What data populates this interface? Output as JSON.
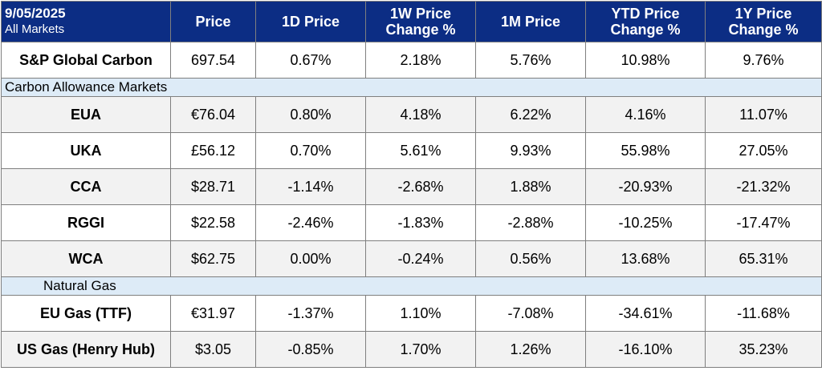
{
  "header": {
    "date": "9/05/2025",
    "subtitle": "All Markets",
    "columns": [
      "Price",
      "1D Price",
      "1W Price\nChange %",
      "1M Price",
      "YTD Price\nChange %",
      "1Y Price\nChange %"
    ]
  },
  "rows": [
    {
      "type": "data",
      "name": "S&P Global Carbon",
      "shade": false,
      "values": [
        "697.54",
        "0.67%",
        "2.18%",
        "5.76%",
        "10.98%",
        "9.76%"
      ]
    },
    {
      "type": "section",
      "label": "Carbon Allowance Markets"
    },
    {
      "type": "data",
      "name": "EUA",
      "shade": true,
      "values": [
        "€76.04",
        "0.80%",
        "4.18%",
        "6.22%",
        "4.16%",
        "11.07%"
      ]
    },
    {
      "type": "data",
      "name": "UKA",
      "shade": false,
      "values": [
        "£56.12",
        "0.70%",
        "5.61%",
        "9.93%",
        "55.98%",
        "27.05%"
      ]
    },
    {
      "type": "data",
      "name": "CCA",
      "shade": true,
      "values": [
        "$28.71",
        "-1.14%",
        "-2.68%",
        "1.88%",
        "-20.93%",
        "-21.32%"
      ]
    },
    {
      "type": "data",
      "name": "RGGI",
      "shade": false,
      "values": [
        "$22.58",
        "-2.46%",
        "-1.83%",
        "-2.88%",
        "-10.25%",
        "-17.47%"
      ]
    },
    {
      "type": "data",
      "name": "WCA",
      "shade": true,
      "values": [
        "$62.75",
        "0.00%",
        "-0.24%",
        "0.56%",
        "13.68%",
        "65.31%"
      ]
    },
    {
      "type": "section",
      "label": "Natural Gas"
    },
    {
      "type": "data",
      "name": "EU Gas (TTF)",
      "shade": false,
      "values": [
        "€31.97",
        "-1.37%",
        "1.10%",
        "-7.08%",
        "-34.61%",
        "-11.68%"
      ]
    },
    {
      "type": "data",
      "name": "US Gas (Henry Hub)",
      "shade": true,
      "values": [
        "$3.05",
        "-0.85%",
        "1.70%",
        "1.26%",
        "-16.10%",
        "35.23%"
      ]
    }
  ],
  "colors": {
    "header_bg": "#0c2d84",
    "section_bg": "#ddebf7",
    "shade_bg": "#f2f2f2"
  }
}
